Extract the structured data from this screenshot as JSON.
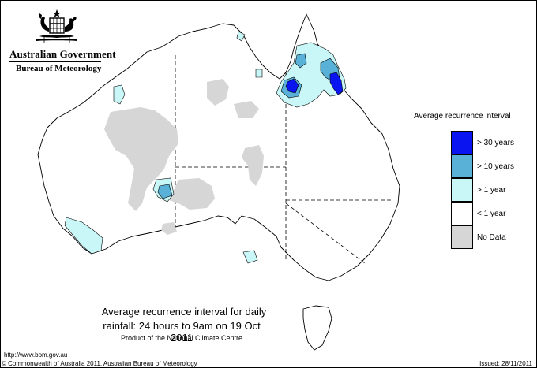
{
  "header": {
    "government": "Australian Government",
    "bureau": "Bureau of Meteorology"
  },
  "legend": {
    "title": "Average recurrence interval",
    "items": [
      {
        "label": "> 30 years",
        "color": "#0a14f0"
      },
      {
        "label": "> 10 years",
        "color": "#59b1d8"
      },
      {
        "label": "> 1 year",
        "color": "#c9f7f7"
      },
      {
        "label": "< 1 year",
        "color": "#ffffff"
      },
      {
        "label": "No Data",
        "color": "#d6d6d6"
      }
    ]
  },
  "caption": {
    "line1": "Average recurrence interval for daily",
    "line2": "rainfall: 24 hours to 9am on 19 Oct 2011",
    "line3": "Product of the National Climate Centre"
  },
  "footer": {
    "url": "http://www.bom.gov.au",
    "copyright": "© Commonwealth of Australia 2011, Australian Bureau of Meteorology",
    "issued": "Issued: 28/11/2011"
  },
  "icons": {
    "crest": "commonwealth-coat-of-arms-icon"
  }
}
